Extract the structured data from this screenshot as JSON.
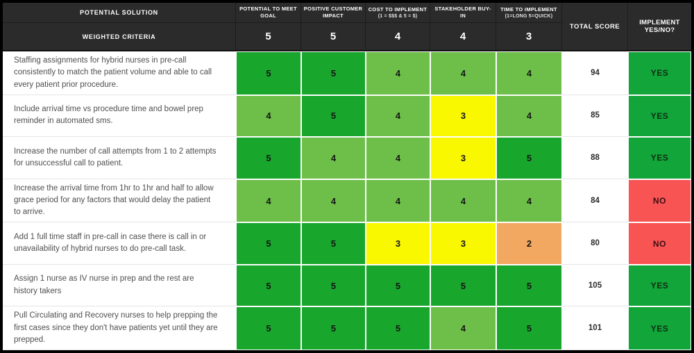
{
  "chart_data": {
    "type": "table",
    "header": {
      "solution_label": "POTENTIAL SOLUTION",
      "weighted_criteria_label": "WEIGHTED CRITERIA",
      "criteria": [
        {
          "label": "POTENTIAL TO MEET GOAL",
          "weight": "5"
        },
        {
          "label": "POSITIVE CUSTOMER IMPACT",
          "weight": "5"
        },
        {
          "label": "COST TO IMPLEMENT",
          "sub": "(1 = $$$ & 5 = $)",
          "weight": "4"
        },
        {
          "label": "STAKEHOLDER BUY-IN",
          "weight": "4"
        },
        {
          "label": "TIME TO IMPLEMENT",
          "sub": "(1=LONG 5=QUICK)",
          "weight": "3"
        }
      ],
      "total_label": "TOTAL SCORE",
      "implement_label": "IMPLEMENT YES/NO?"
    },
    "rows": [
      {
        "solution": "Staffing assignments for hybrid nurses in pre-call consistently to match the patient volume and able to call every patient prior procedure.",
        "scores": [
          "5",
          "5",
          "4",
          "4",
          "4"
        ],
        "total": "94",
        "decision": "YES"
      },
      {
        "solution": "Include arrival time vs procedure time and bowel prep reminder in automated sms.",
        "scores": [
          "4",
          "5",
          "4",
          "3",
          "4"
        ],
        "total": "85",
        "decision": "YES"
      },
      {
        "solution": "Increase the number of call attempts from 1 to 2 attempts for unsuccessful call to patient.",
        "scores": [
          "5",
          "4",
          "4",
          "3",
          "5"
        ],
        "total": "88",
        "decision": "YES"
      },
      {
        "solution": "Increase the arrival time from 1hr to 1hr and half to allow grace period for any factors that would delay the patient to arrive.",
        "scores": [
          "4",
          "4",
          "4",
          "4",
          "4"
        ],
        "total": "84",
        "decision": "NO"
      },
      {
        "solution": "Add 1 full time staff in pre-call in case there is call in or unavailability of hybrid nurses to do pre-call task.",
        "scores": [
          "5",
          "5",
          "3",
          "3",
          "2"
        ],
        "total": "80",
        "decision": "NO"
      },
      {
        "solution": "Assign 1 nurse as IV nurse in prep and the rest are history takers",
        "scores": [
          "5",
          "5",
          "5",
          "5",
          "5"
        ],
        "total": "105",
        "decision": "YES"
      },
      {
        "solution": "Pull Circulating and Recovery nurses to help prepping the first cases since they don't have patients yet until they are prepped.",
        "scores": [
          "5",
          "5",
          "5",
          "4",
          "5"
        ],
        "total": "101",
        "decision": "YES"
      }
    ]
  },
  "colors": {
    "score": {
      "5": "#18a62d",
      "4": "#6dbf49",
      "3": "#f9f800",
      "2": "#f2a861"
    },
    "decision_bg": {
      "YES": "#12a53a",
      "NO": "#f95454"
    },
    "decision_text": {
      "YES": "#0f2c12",
      "NO": "#3a0f10"
    },
    "header_bg": "#2b2b2b",
    "header_text": "#ffffff"
  }
}
